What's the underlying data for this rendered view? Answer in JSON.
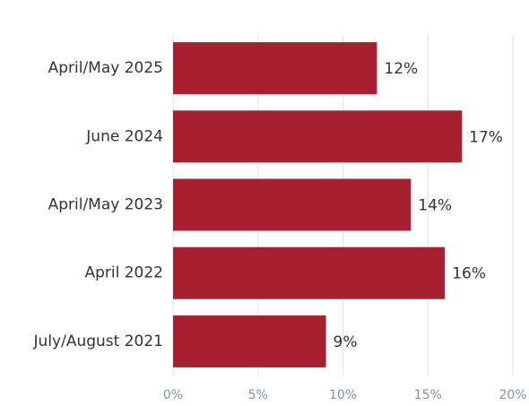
{
  "chart_data": {
    "type": "bar",
    "orientation": "horizontal",
    "categories": [
      "April/May 2025",
      "June 2024",
      "April/May 2023",
      "April 2022",
      "July/August 2021"
    ],
    "values": [
      12,
      17,
      14,
      16,
      9
    ],
    "value_labels": [
      "12%",
      "17%",
      "14%",
      "16%",
      "9%"
    ],
    "color": "#a8202f",
    "xlim": [
      0,
      20
    ],
    "xticks": [
      {
        "value": 0,
        "label": "0%"
      },
      {
        "value": 5,
        "label": "5%"
      },
      {
        "value": 10,
        "label": "10%"
      },
      {
        "value": 15,
        "label": "15%"
      },
      {
        "value": 20,
        "label": "20%"
      }
    ],
    "grid": true
  }
}
